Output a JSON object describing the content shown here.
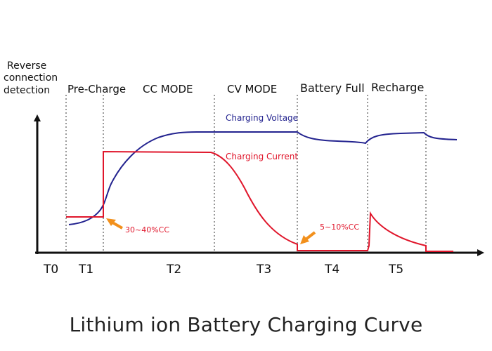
{
  "title": "Lithium ion Battery Charging Curve",
  "colors": {
    "voltage": "#23238f",
    "current": "#e0162b",
    "arrow": "#f2901c",
    "axis": "#111111"
  },
  "phases": {
    "reverse_line1": "Reverse",
    "reverse_line2": "connection",
    "reverse_line3": "detection",
    "pre_charge": "Pre-Charge",
    "cc_mode": "CC MODE",
    "cv_mode": "CV MODE",
    "battery_full": "Battery Full",
    "recharge": "Recharge"
  },
  "time_labels": [
    "T0",
    "T1",
    "T2",
    "T3",
    "T4",
    "T5"
  ],
  "curves": {
    "voltage_label": "Charging Voltage",
    "current_label": "Charging Current"
  },
  "annotations": {
    "precharge_current": "30~40%CC",
    "termination_current": "5~10%CC"
  }
}
